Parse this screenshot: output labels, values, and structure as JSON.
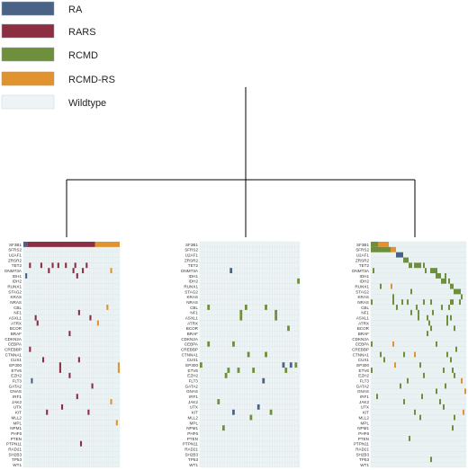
{
  "legend": [
    {
      "label": "RA",
      "color": "#4a6286"
    },
    {
      "label": "RARS",
      "color": "#8c2f43"
    },
    {
      "label": "RCMD",
      "color": "#6e8f3b"
    },
    {
      "label": "RCMD-RS",
      "color": "#e1932f"
    },
    {
      "label": "Wildtype",
      "color": "#eef4f5"
    }
  ],
  "genes": [
    "SF3B1",
    "SFRS2",
    "U2AF1",
    "ZRSR2",
    "TET2",
    "DNMT3A",
    "IDH1",
    "IDH2",
    "RUNX1",
    "STAG2",
    "KRAS",
    "NRAS",
    "CBL",
    "NF1",
    "ASXL1",
    "ATRX",
    "BCOR",
    "BRAF",
    "CDKN2A",
    "CEBPA",
    "CREBBP",
    "CTNNA1",
    "CUX1",
    "EP300",
    "ETV6",
    "EZH2",
    "FLT3",
    "GATA2",
    "GNAS",
    "IRF1",
    "JAK2",
    "UTX",
    "KIT",
    "MLL2",
    "MPL",
    "NPM1",
    "PHF6",
    "PTEN",
    "PTPN11",
    "RAD21",
    "SH2B3",
    "TP53",
    "WT1"
  ],
  "colors": {
    "RA": "#4a6286",
    "RARS": "#8c2f43",
    "RCMD": "#6e8f3b",
    "RCMD-RS": "#e1932f",
    "Wildtype": "#eef4f5",
    "grid": "#d3e0e3",
    "tree": "#000000"
  },
  "panels": [
    {
      "samples": 51,
      "header": [
        {
          "from": 0,
          "to": 2,
          "class": "RA"
        },
        {
          "from": 2,
          "to": 38,
          "class": "RARS"
        },
        {
          "from": 38,
          "to": 51,
          "class": "RCMD-RS"
        }
      ],
      "cells": [
        [
          4,
          3,
          "RARS"
        ],
        [
          4,
          9,
          "RARS"
        ],
        [
          4,
          15,
          "RARS"
        ],
        [
          4,
          18,
          "RARS"
        ],
        [
          4,
          22,
          "RARS"
        ],
        [
          4,
          27,
          "RARS"
        ],
        [
          4,
          33,
          "RARS"
        ],
        [
          5,
          13,
          "RARS"
        ],
        [
          5,
          26,
          "RARS"
        ],
        [
          5,
          31,
          "RARS"
        ],
        [
          5,
          46,
          "RCMD-RS"
        ],
        [
          6,
          1,
          "RA"
        ],
        [
          6,
          28,
          "RARS"
        ],
        [
          12,
          44,
          "RCMD-RS"
        ],
        [
          13,
          29,
          "RARS"
        ],
        [
          14,
          6,
          "RARS"
        ],
        [
          14,
          35,
          "RARS"
        ],
        [
          15,
          7,
          "RARS"
        ],
        [
          15,
          39,
          "RCMD-RS"
        ],
        [
          17,
          24,
          "RARS"
        ],
        [
          20,
          3,
          "RARS"
        ],
        [
          22,
          10,
          "RARS"
        ],
        [
          22,
          29,
          "RARS"
        ],
        [
          23,
          19,
          "RARS"
        ],
        [
          23,
          50,
          "RCMD-RS"
        ],
        [
          24,
          19,
          "RARS"
        ],
        [
          24,
          50,
          "RCMD-RS"
        ],
        [
          25,
          24,
          "RARS"
        ],
        [
          26,
          4,
          "RA"
        ],
        [
          27,
          36,
          "RARS"
        ],
        [
          29,
          28,
          "RARS"
        ],
        [
          30,
          46,
          "RCMD-RS"
        ],
        [
          31,
          20,
          "RARS"
        ],
        [
          32,
          12,
          "RARS"
        ],
        [
          32,
          34,
          "RARS"
        ],
        [
          34,
          49,
          "RCMD-RS"
        ],
        [
          38,
          30,
          "RARS"
        ]
      ]
    },
    {
      "samples": 40,
      "header": [],
      "cells": [
        [
          5,
          12,
          "RA"
        ],
        [
          7,
          39,
          "RCMD"
        ],
        [
          12,
          3,
          "RCMD"
        ],
        [
          12,
          18,
          "RCMD"
        ],
        [
          12,
          26,
          "RCMD"
        ],
        [
          13,
          16,
          "RCMD"
        ],
        [
          13,
          30,
          "RCMD"
        ],
        [
          14,
          16,
          "RCMD"
        ],
        [
          14,
          30,
          "RCMD"
        ],
        [
          16,
          35,
          "RCMD"
        ],
        [
          19,
          3,
          "RCMD"
        ],
        [
          19,
          13,
          "RCMD"
        ],
        [
          21,
          19,
          "RCMD"
        ],
        [
          21,
          26,
          "RCMD"
        ],
        [
          23,
          0,
          "RCMD"
        ],
        [
          23,
          33,
          "RA"
        ],
        [
          23,
          36,
          "RA"
        ],
        [
          23,
          38,
          "RCMD"
        ],
        [
          24,
          11,
          "RCMD"
        ],
        [
          24,
          15,
          "RCMD"
        ],
        [
          24,
          21,
          "RCMD"
        ],
        [
          24,
          34,
          "RCMD"
        ],
        [
          25,
          10,
          "RCMD"
        ],
        [
          26,
          25,
          "RA"
        ],
        [
          30,
          7,
          "RCMD"
        ],
        [
          31,
          23,
          "RA"
        ],
        [
          32,
          13,
          "RA"
        ],
        [
          32,
          28,
          "RCMD"
        ],
        [
          33,
          20,
          "RCMD"
        ],
        [
          35,
          9,
          "RCMD"
        ]
      ]
    },
    {
      "samples": 53,
      "header": [
        {
          "from": 0,
          "to": 4,
          "class": "RCMD"
        },
        {
          "from": 4,
          "to": 10,
          "class": "RCMD-RS"
        }
      ],
      "cells": [
        [
          1,
          0,
          "RCMD"
        ],
        [
          1,
          1,
          "RCMD"
        ],
        [
          1,
          2,
          "RCMD"
        ],
        [
          1,
          3,
          "RCMD"
        ],
        [
          1,
          4,
          "RCMD"
        ],
        [
          1,
          5,
          "RCMD"
        ],
        [
          1,
          6,
          "RCMD"
        ],
        [
          1,
          7,
          "RCMD"
        ],
        [
          1,
          8,
          "RCMD"
        ],
        [
          1,
          9,
          "RCMD"
        ],
        [
          1,
          10,
          "RCMD"
        ],
        [
          1,
          11,
          "RCMD-RS"
        ],
        [
          1,
          12,
          "RCMD-RS"
        ],
        [
          1,
          13,
          "RCMD-RS"
        ],
        [
          2,
          14,
          "RA"
        ],
        [
          2,
          15,
          "RA"
        ],
        [
          2,
          16,
          "RA"
        ],
        [
          2,
          17,
          "RA"
        ],
        [
          3,
          18,
          "RCMD"
        ],
        [
          3,
          19,
          "RCMD"
        ],
        [
          3,
          20,
          "RCMD"
        ],
        [
          4,
          21,
          "RCMD"
        ],
        [
          4,
          22,
          "RCMD"
        ],
        [
          4,
          24,
          "RCMD"
        ],
        [
          4,
          25,
          "RCMD"
        ],
        [
          4,
          26,
          "RCMD"
        ],
        [
          4,
          27,
          "RCMD"
        ],
        [
          4,
          29,
          "RCMD"
        ],
        [
          5,
          1,
          "RCMD"
        ],
        [
          5,
          30,
          "RCMD"
        ],
        [
          5,
          33,
          "RCMD"
        ],
        [
          5,
          34,
          "RCMD"
        ],
        [
          5,
          35,
          "RCMD"
        ],
        [
          5,
          36,
          "RCMD"
        ],
        [
          6,
          36,
          "RCMD"
        ],
        [
          6,
          37,
          "RCMD"
        ],
        [
          6,
          38,
          "RCMD"
        ],
        [
          6,
          41,
          "RCMD"
        ],
        [
          7,
          39,
          "RCMD"
        ],
        [
          7,
          40,
          "RCMD"
        ],
        [
          7,
          41,
          "RCMD"
        ],
        [
          7,
          43,
          "RCMD"
        ],
        [
          8,
          5,
          "RCMD"
        ],
        [
          8,
          11,
          "RCMD-RS"
        ],
        [
          8,
          44,
          "RCMD"
        ],
        [
          8,
          45,
          "RCMD"
        ],
        [
          9,
          22,
          "RCMD"
        ],
        [
          9,
          46,
          "RCMD"
        ],
        [
          9,
          47,
          "RCMD"
        ],
        [
          9,
          48,
          "RCMD"
        ],
        [
          9,
          49,
          "RCMD"
        ],
        [
          10,
          12,
          "RCMD"
        ],
        [
          10,
          50,
          "RCMD"
        ],
        [
          11,
          0,
          "RCMD"
        ],
        [
          11,
          12,
          "RCMD"
        ],
        [
          11,
          17,
          "RCMD"
        ],
        [
          11,
          20,
          "RCMD"
        ],
        [
          11,
          29,
          "RCMD"
        ],
        [
          11,
          33,
          "RCMD"
        ],
        [
          11,
          44,
          "RCMD"
        ],
        [
          11,
          45,
          "RCMD"
        ],
        [
          11,
          49,
          "RCMD"
        ],
        [
          12,
          14,
          "RCMD"
        ],
        [
          12,
          25,
          "RCMD"
        ],
        [
          12,
          39,
          "RCMD"
        ],
        [
          12,
          43,
          "RCMD"
        ],
        [
          13,
          22,
          "RCMD"
        ],
        [
          13,
          26,
          "RCMD"
        ],
        [
          13,
          34,
          "RCMD"
        ],
        [
          14,
          26,
          "RCMD"
        ],
        [
          14,
          31,
          "RCMD"
        ],
        [
          14,
          42,
          "RCMD"
        ],
        [
          14,
          44,
          "RCMD"
        ],
        [
          15,
          32,
          "RCMD"
        ],
        [
          15,
          42,
          "RCMD"
        ],
        [
          16,
          33,
          "RCMD"
        ],
        [
          16,
          46,
          "RCMD"
        ],
        [
          17,
          31,
          "RCMD"
        ],
        [
          19,
          0,
          "RCMD"
        ],
        [
          19,
          12,
          "RCMD-RS"
        ],
        [
          19,
          36,
          "RCMD"
        ],
        [
          20,
          47,
          "RCMD"
        ],
        [
          21,
          5,
          "RCMD"
        ],
        [
          21,
          18,
          "RCMD"
        ],
        [
          21,
          24,
          "RCMD-RS"
        ],
        [
          21,
          42,
          "RCMD"
        ],
        [
          22,
          7,
          "RCMD"
        ],
        [
          22,
          44,
          "RCMD"
        ],
        [
          23,
          13,
          "RCMD-RS"
        ],
        [
          23,
          27,
          "RCMD"
        ],
        [
          24,
          0,
          "RCMD"
        ],
        [
          24,
          40,
          "RCMD"
        ],
        [
          24,
          45,
          "RCMD"
        ],
        [
          25,
          29,
          "RCMD"
        ],
        [
          25,
          46,
          "RCMD"
        ],
        [
          26,
          20,
          "RCMD"
        ],
        [
          26,
          50,
          "RCMD-RS"
        ],
        [
          27,
          16,
          "RCMD"
        ],
        [
          27,
          41,
          "RCMD"
        ],
        [
          28,
          36,
          "RCMD"
        ],
        [
          28,
          52,
          "RCMD-RS"
        ],
        [
          29,
          3,
          "RCMD"
        ],
        [
          29,
          28,
          "RCMD"
        ],
        [
          30,
          18,
          "RCMD"
        ],
        [
          30,
          38,
          "RCMD"
        ],
        [
          31,
          40,
          "RCMD"
        ],
        [
          32,
          24,
          "RCMD"
        ],
        [
          32,
          51,
          "RCMD-RS"
        ],
        [
          33,
          27,
          "RCMD"
        ],
        [
          33,
          46,
          "RCMD"
        ],
        [
          35,
          45,
          "RCMD"
        ],
        [
          37,
          21,
          "RCMD"
        ],
        [
          41,
          33,
          "RCMD"
        ]
      ]
    }
  ]
}
